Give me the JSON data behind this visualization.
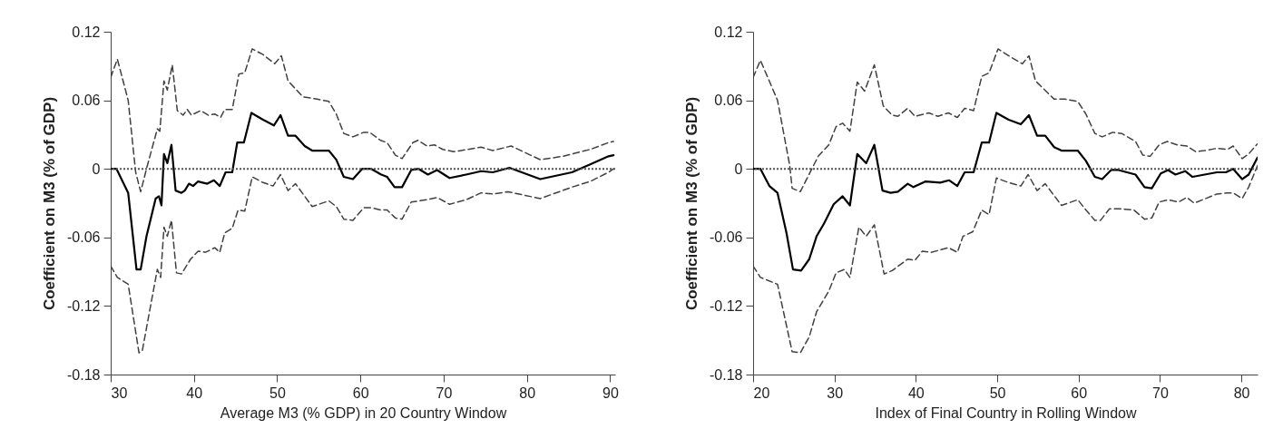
{
  "chart_data": [
    {
      "type": "line",
      "xlabel": "Average M3 (% GDP) in 20 Country Window",
      "ylabel": "Coefficient on M3 (% of GDP)",
      "xlim": [
        30,
        90.6
      ],
      "xticks": [
        30,
        40,
        50,
        60,
        70,
        80,
        90
      ],
      "ylim": [
        -0.18,
        0.12
      ],
      "yticks": [
        -0.18,
        -0.12,
        -0.06,
        0,
        0.06,
        0.12
      ],
      "grid": false,
      "ref_lines": [
        {
          "axis": "y",
          "value": 0,
          "color": "#555555",
          "line_style": "dotted"
        }
      ],
      "series": [
        {
          "color": "#000000",
          "line_style": "solid",
          "x": [
            30,
            30.7,
            32.1,
            33.1,
            33.6,
            34.3,
            35.4,
            35.8,
            36.1,
            36.4,
            36.8,
            37.3,
            37.8,
            38.5,
            38.9,
            39.4,
            39.9,
            40.5,
            41.6,
            42.4,
            43.1,
            43.8,
            44.6,
            45.2,
            46.0,
            46.9,
            48.3,
            49.6,
            50.4,
            51.3,
            52.2,
            53.3,
            54.2,
            56.2,
            57.1,
            58.0,
            59.1,
            60.2,
            61.3,
            62.5,
            63.2,
            64.1,
            65.0,
            66.1,
            67.0,
            68.1,
            69.2,
            70.7,
            72.7,
            74.5,
            75.9,
            77.9,
            81.6,
            85.4,
            87.6,
            89.8,
            90.4
          ],
          "values": [
            0,
            0,
            -0.021,
            -0.088,
            -0.088,
            -0.059,
            -0.026,
            -0.024,
            -0.032,
            0.013,
            0.005,
            0.021,
            -0.019,
            -0.021,
            -0.019,
            -0.013,
            -0.015,
            -0.011,
            -0.013,
            -0.01,
            -0.015,
            -0.003,
            -0.003,
            0.023,
            0.023,
            0.049,
            0.043,
            0.038,
            0.047,
            0.029,
            0.029,
            0.02,
            0.016,
            0.016,
            0.008,
            -0.007,
            -0.009,
            0,
            0,
            -0.005,
            -0.007,
            -0.016,
            -0.016,
            -0.001,
            0,
            -0.005,
            -0.001,
            -0.008,
            -0.005,
            -0.002,
            -0.003,
            0.001,
            -0.009,
            -0.003,
            0.004,
            0.011,
            0.012
          ]
        },
        {
          "color": "#404040",
          "line_style": "dashed",
          "x": [
            30,
            30.8,
            32.1,
            33.0,
            33.6,
            34.3,
            35.6,
            35.9,
            36.4,
            36.8,
            37.4,
            38.0,
            38.7,
            39.2,
            39.7,
            40.8,
            41.7,
            42.5,
            43.2,
            43.7,
            44.6,
            45.4,
            46.1,
            47.0,
            48.3,
            49.7,
            50.5,
            51.3,
            53.1,
            54.8,
            56.2,
            57.1,
            58.0,
            59.1,
            60.4,
            61.1,
            62.4,
            63.2,
            64.2,
            65.0,
            66.3,
            66.9,
            68.0,
            68.9,
            69.9,
            71.2,
            74.5,
            75.9,
            78.1,
            81.6,
            84.3,
            87.6,
            89.8,
            90.4
          ],
          "values": [
            0.08,
            0.096,
            0.06,
            -0.003,
            -0.02,
            0,
            0.035,
            0.033,
            0.077,
            0.069,
            0.091,
            0.051,
            0.047,
            0.052,
            0.047,
            0.051,
            0.047,
            0.048,
            0.045,
            0.052,
            0.052,
            0.083,
            0.084,
            0.105,
            0.1,
            0.092,
            0.099,
            0.077,
            0.063,
            0.061,
            0.059,
            0.048,
            0.031,
            0.028,
            0.032,
            0.032,
            0.025,
            0.023,
            0.012,
            0.009,
            0.023,
            0.025,
            0.02,
            0.021,
            0.017,
            0.015,
            0.019,
            0.016,
            0.02,
            0.008,
            0.011,
            0.017,
            0.023,
            0.024
          ]
        },
        {
          "color": "#404040",
          "line_style": "dashed",
          "x": [
            30,
            30.8,
            32.1,
            33.4,
            33.8,
            35.6,
            36.0,
            36.4,
            36.8,
            37.3,
            37.9,
            38.5,
            39.6,
            40.5,
            41.4,
            42.5,
            43.1,
            43.7,
            44.6,
            45.3,
            46.1,
            47.0,
            48.3,
            49.5,
            50.4,
            51.3,
            52.2,
            54.2,
            56.2,
            57.1,
            58.0,
            59.1,
            60.4,
            61.3,
            62.4,
            63.2,
            64.2,
            65.0,
            66.1,
            68.0,
            69.2,
            70.7,
            72.7,
            74.5,
            75.9,
            77.7,
            81.6,
            85.4,
            87.6,
            89.8,
            90.4
          ],
          "values": [
            -0.085,
            -0.095,
            -0.101,
            -0.161,
            -0.159,
            -0.088,
            -0.095,
            -0.051,
            -0.059,
            -0.045,
            -0.091,
            -0.092,
            -0.079,
            -0.072,
            -0.073,
            -0.069,
            -0.073,
            -0.056,
            -0.052,
            -0.036,
            -0.037,
            -0.007,
            -0.012,
            -0.015,
            -0.005,
            -0.019,
            -0.013,
            -0.033,
            -0.028,
            -0.033,
            -0.044,
            -0.045,
            -0.034,
            -0.034,
            -0.036,
            -0.036,
            -0.043,
            -0.044,
            -0.029,
            -0.027,
            -0.025,
            -0.031,
            -0.027,
            -0.021,
            -0.022,
            -0.02,
            -0.026,
            -0.016,
            -0.011,
            -0.003,
            0
          ]
        }
      ]
    },
    {
      "type": "line",
      "xlabel": "Index of Final Country in Rolling Window",
      "ylabel": "Coefficient on M3 (% of GDP)",
      "xlim": [
        20,
        82
      ],
      "xticks": [
        20,
        30,
        40,
        50,
        60,
        70,
        80
      ],
      "ylim": [
        -0.18,
        0.12
      ],
      "yticks": [
        -0.18,
        -0.12,
        -0.06,
        0,
        0.06,
        0.12
      ],
      "grid": false,
      "ref_lines": [
        {
          "axis": "y",
          "value": 0,
          "color": "#555555",
          "line_style": "dotted"
        }
      ],
      "series": [
        {
          "color": "#000000",
          "line_style": "solid",
          "x": [
            20,
            20.9,
            22.0,
            23.0,
            24.1,
            24.9,
            25.9,
            26.9,
            27.8,
            28.7,
            29.9,
            31.0,
            31.9,
            32.8,
            33.9,
            34.9,
            35.9,
            36.9,
            37.8,
            39.0,
            39.7,
            41.2,
            43.0,
            44.1,
            45.1,
            46.0,
            47.1,
            48.1,
            49.0,
            49.9,
            51.4,
            52.9,
            53.9,
            54.9,
            55.9,
            57.0,
            57.9,
            59.9,
            60.9,
            62.0,
            62.9,
            64.0,
            64.9,
            67.0,
            68.1,
            69.0,
            70.1,
            71.0,
            71.9,
            73.1,
            74.0,
            77.0,
            78.1,
            79.0,
            80.1,
            80.9,
            82.0
          ],
          "values": [
            0,
            0,
            -0.015,
            -0.021,
            -0.056,
            -0.088,
            -0.089,
            -0.079,
            -0.059,
            -0.048,
            -0.031,
            -0.024,
            -0.032,
            0.013,
            0.005,
            0.021,
            -0.019,
            -0.021,
            -0.02,
            -0.013,
            -0.016,
            -0.011,
            -0.012,
            -0.01,
            -0.015,
            -0.003,
            -0.003,
            0.023,
            0.023,
            0.049,
            0.043,
            0.039,
            0.047,
            0.029,
            0.029,
            0.019,
            0.016,
            0.016,
            0.007,
            -0.007,
            -0.009,
            -0.001,
            -0.001,
            -0.005,
            -0.016,
            -0.017,
            -0.004,
            -0.001,
            -0.005,
            -0.002,
            -0.007,
            -0.003,
            -0.003,
            0,
            -0.009,
            -0.005,
            0.01
          ]
        },
        {
          "color": "#404040",
          "line_style": "dashed",
          "x": [
            20,
            20.9,
            23.0,
            24.5,
            24.8,
            25.8,
            28.0,
            29.3,
            30.2,
            31.0,
            31.9,
            32.8,
            33.7,
            34.9,
            36.0,
            37.1,
            37.8,
            39.0,
            39.9,
            41.6,
            42.7,
            44.0,
            45.1,
            46.0,
            47.1,
            48.1,
            49.0,
            50.1,
            51.4,
            53.1,
            53.9,
            54.7,
            57.0,
            58.3,
            59.9,
            60.9,
            62.0,
            62.9,
            64.2,
            65.3,
            67.0,
            67.9,
            68.8,
            69.9,
            70.9,
            72.1,
            73.3,
            74.4,
            75.5,
            77.0,
            78.3,
            79.0,
            80.1,
            80.9,
            82.0
          ],
          "values": [
            0.08,
            0.095,
            0.06,
            0.003,
            -0.017,
            -0.02,
            0.011,
            0.021,
            0.037,
            0.04,
            0.033,
            0.076,
            0.068,
            0.091,
            0.055,
            0.047,
            0.046,
            0.053,
            0.046,
            0.049,
            0.046,
            0.049,
            0.045,
            0.053,
            0.051,
            0.081,
            0.084,
            0.105,
            0.099,
            0.092,
            0.099,
            0.077,
            0.061,
            0.061,
            0.059,
            0.048,
            0.031,
            0.028,
            0.032,
            0.031,
            0.024,
            0.012,
            0.011,
            0.021,
            0.024,
            0.021,
            0.02,
            0.015,
            0.016,
            0.018,
            0.017,
            0.02,
            0.009,
            0.013,
            0.022
          ]
        },
        {
          "color": "#404040",
          "line_style": "dashed",
          "x": [
            20,
            20.9,
            23.0,
            24.8,
            25.8,
            26.9,
            27.8,
            29.3,
            30.2,
            31.2,
            31.9,
            33.0,
            33.9,
            34.9,
            36.1,
            37.1,
            39.0,
            39.9,
            40.8,
            41.9,
            44.0,
            45.1,
            45.8,
            47.0,
            48.1,
            49.0,
            49.9,
            51.4,
            52.9,
            53.8,
            54.9,
            55.9,
            57.9,
            59.9,
            60.9,
            62.0,
            62.7,
            63.8,
            65.1,
            66.8,
            68.1,
            69.0,
            69.9,
            71.0,
            72.3,
            73.3,
            74.2,
            77.0,
            78.3,
            79.0,
            80.1,
            80.9,
            82.0
          ],
          "values": [
            -0.085,
            -0.095,
            -0.101,
            -0.16,
            -0.161,
            -0.147,
            -0.125,
            -0.107,
            -0.091,
            -0.088,
            -0.095,
            -0.051,
            -0.059,
            -0.049,
            -0.092,
            -0.089,
            -0.079,
            -0.08,
            -0.072,
            -0.073,
            -0.069,
            -0.073,
            -0.059,
            -0.055,
            -0.036,
            -0.04,
            -0.008,
            -0.012,
            -0.015,
            -0.005,
            -0.019,
            -0.013,
            -0.032,
            -0.027,
            -0.036,
            -0.045,
            -0.045,
            -0.035,
            -0.035,
            -0.036,
            -0.044,
            -0.043,
            -0.029,
            -0.027,
            -0.029,
            -0.025,
            -0.03,
            -0.022,
            -0.021,
            -0.021,
            -0.026,
            -0.016,
            0.003
          ]
        }
      ]
    }
  ]
}
